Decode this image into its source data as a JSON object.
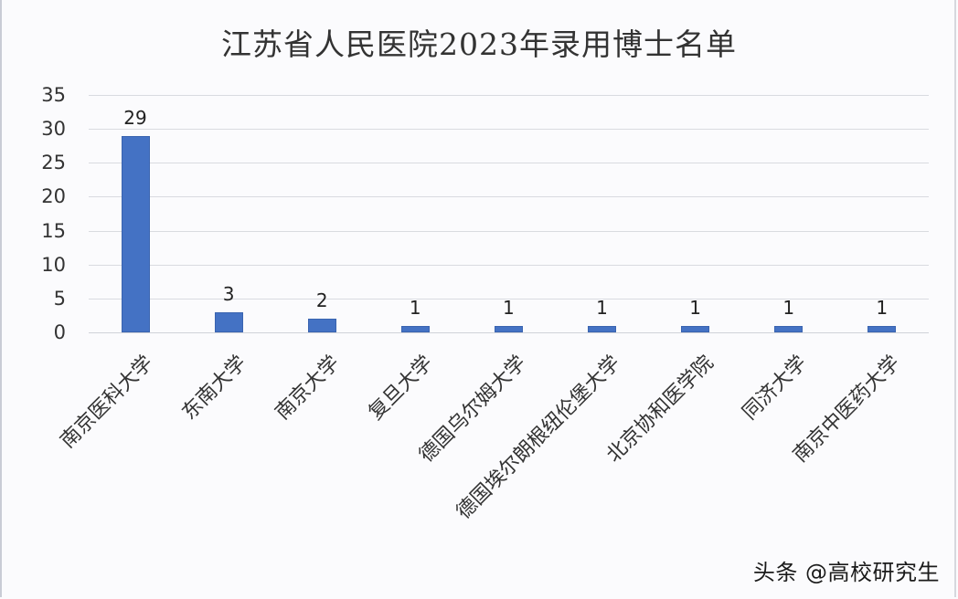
{
  "chart_data": {
    "type": "bar",
    "title": "江苏省人民医院2023年录用博士名单",
    "categories": [
      "南京医科大学",
      "东南大学",
      "南京大学",
      "复旦大学",
      "德国乌尔姆大学",
      "德国埃尔朗根纽伦堡大学",
      "北京协和医学院",
      "同济大学",
      "南京中医药大学"
    ],
    "values": [
      29,
      3,
      2,
      1,
      1,
      1,
      1,
      1,
      1
    ],
    "xlabel": "",
    "ylabel": "",
    "ylim": [
      0,
      35
    ],
    "yticks": [
      0,
      5,
      10,
      15,
      20,
      25,
      30,
      35
    ],
    "grid": true,
    "legend": "none",
    "data_labels": true,
    "bar_color": "#4472c4"
  },
  "ytick_labels": [
    "35",
    "30",
    "25",
    "20",
    "15",
    "10",
    "5",
    "0"
  ],
  "value_labels": [
    "29",
    "3",
    "2",
    "1",
    "1",
    "1",
    "1",
    "1",
    "1"
  ],
  "watermark": "头条 @高校研究生"
}
